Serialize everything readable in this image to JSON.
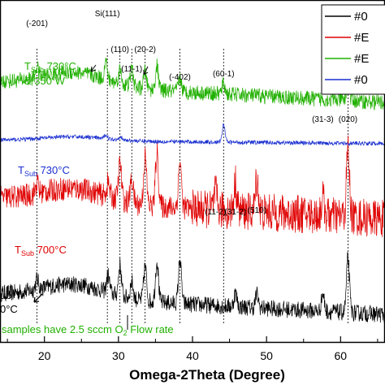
{
  "chart_data": {
    "type": "line",
    "xlabel": "Omega-2Theta (Degree)",
    "xlim": [
      14,
      66
    ],
    "x_ticks": [
      20,
      30,
      40,
      50,
      60
    ],
    "ylabel": "",
    "series": [
      {
        "name": "#0",
        "color": "#000000",
        "offset": 0.14,
        "noise": 0.05,
        "peaks": [
          [
            19.0,
            0.03
          ],
          [
            28.6,
            0.05
          ],
          [
            30.2,
            0.09
          ],
          [
            31.8,
            0.05
          ],
          [
            33.6,
            0.1
          ],
          [
            35.2,
            0.12
          ],
          [
            38.3,
            0.13
          ],
          [
            45.8,
            0.04
          ],
          [
            48.7,
            0.04
          ],
          [
            57.6,
            0.05
          ],
          [
            61.0,
            0.16
          ]
        ]
      },
      {
        "name": "#E",
        "color": "#e00000",
        "offset": 0.42,
        "noise": 0.07,
        "peaks": [
          [
            19.0,
            0.03
          ],
          [
            28.6,
            0.04
          ],
          [
            30.2,
            0.11
          ],
          [
            31.8,
            0.07
          ],
          [
            33.6,
            0.14
          ],
          [
            35.2,
            0.16
          ],
          [
            38.3,
            0.14
          ],
          [
            43.1,
            0.05
          ],
          [
            45.8,
            0.08
          ],
          [
            48.7,
            0.1
          ],
          [
            57.6,
            0.05
          ],
          [
            61.0,
            0.2
          ]
        ]
      },
      {
        "name": "#E",
        "color": "#20b000",
        "offset": 0.76,
        "noise": 0.045,
        "peaks": [
          [
            19.0,
            0.03
          ],
          [
            28.3,
            0.05
          ],
          [
            30.2,
            0.04
          ],
          [
            31.8,
            0.05
          ],
          [
            33.6,
            0.05
          ],
          [
            35.2,
            0.07
          ],
          [
            38.3,
            0.04
          ],
          [
            44.2,
            0.03
          ],
          [
            61.0,
            0.06
          ]
        ]
      },
      {
        "name": "#0",
        "color": "#1a2fd0",
        "offset": 0.59,
        "noise": 0.012,
        "peaks": [
          [
            28.3,
            0.012
          ],
          [
            30.2,
            0.01
          ],
          [
            44.2,
            0.05
          ]
        ]
      }
    ],
    "peak_labels": [
      {
        "text": "(-201)",
        "x": 19.0
      },
      {
        "text": "Si(111)",
        "x": 28.5
      },
      {
        "text": "(110)",
        "x": 30.2
      },
      {
        "text": "(11-1)",
        "x": 31.8
      },
      {
        "text": "(20-2)",
        "x": 33.6
      },
      {
        "text": "(-402)",
        "x": 38.3
      },
      {
        "text": "(60-1)",
        "x": 44.2
      },
      {
        "text": "(11-2)",
        "x": 43.1
      },
      {
        "text": "(31-2)",
        "x": 45.8
      },
      {
        "text": "(510)",
        "x": 48.7
      },
      {
        "text": "(31-3)",
        "x": 57.6
      },
      {
        "text": "(020)",
        "x": 61.0
      }
    ],
    "annotations": {
      "green_line1": "T",
      "green_sub": "Sub",
      "green_rest": " 730°C",
      "green_line2": "& 350 W",
      "blue_main": "T",
      "blue_sub": "Sub",
      "blue_rest": " 730°C",
      "red_main": "T",
      "red_sub": "Sub",
      "red_rest": " 700°C",
      "black_sub": "ub",
      "black_line2": "0°C",
      "footer_pre": "samples have 2.5 sccm O",
      "footer_sub": "2",
      "footer_post": " Flow rate"
    },
    "legend": [
      "#0",
      "#E",
      "#E",
      "#0"
    ],
    "legend_position": "top-right"
  },
  "colors": {
    "black": "#000000",
    "red": "#e00000",
    "green": "#20b000",
    "blue": "#1a2fd0"
  }
}
